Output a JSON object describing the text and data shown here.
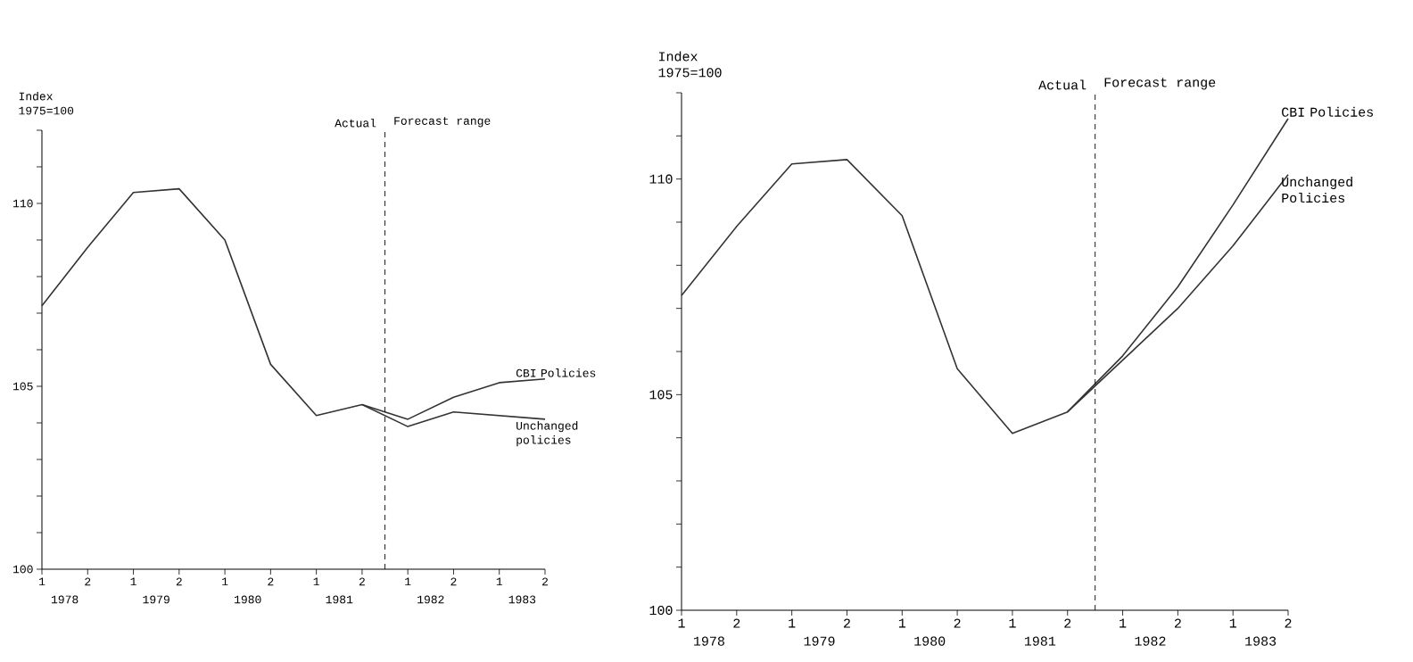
{
  "chart_data": [
    {
      "type": "line",
      "ylabel": "Index 1975=100",
      "ylim": [
        100,
        112
      ],
      "categories": [
        "1",
        "2",
        "1",
        "2",
        "1",
        "2",
        "1",
        "2",
        "1",
        "2",
        "1",
        "2"
      ],
      "yticks": [
        100,
        {
          "value": 101,
          "label": null
        },
        {
          "value": 102,
          "label": null
        },
        {
          "value": 103,
          "label": null
        },
        {
          "value": 104,
          "label": null
        },
        105,
        {
          "value": 106,
          "label": null
        },
        {
          "value": 107,
          "label": null
        },
        {
          "value": 108,
          "label": null
        },
        {
          "value": 109,
          "label": null
        },
        110,
        {
          "value": 111,
          "label": null
        },
        {
          "value": 112,
          "label": null
        }
      ],
      "series": [
        {
          "name": "CBI Policies",
          "color": "#333333",
          "values": [
            107.2,
            108.8,
            110.3,
            110.4,
            109.0,
            105.6,
            104.2,
            104.5,
            104.1,
            104.7,
            105.1,
            105.2
          ]
        },
        {
          "name": "Unchanged policies",
          "color": "#333333",
          "values": [
            null,
            null,
            null,
            null,
            null,
            null,
            null,
            104.5,
            103.9,
            104.3,
            104.2,
            104.1
          ]
        }
      ],
      "annotations": [
        "1978",
        "1979",
        "1980",
        "1981",
        "1982",
        "1983",
        "Actual",
        "Forecast range"
      ],
      "grid": false
    },
    {
      "type": "line",
      "ylabel": "Index 1975=100",
      "ylim": [
        100,
        112
      ],
      "categories": [
        "1",
        "2",
        "1",
        "2",
        "1",
        "2",
        "1",
        "2",
        "1",
        "2",
        "1",
        "2"
      ],
      "yticks": [
        100,
        {
          "value": 101,
          "label": null
        },
        {
          "value": 102,
          "label": null
        },
        {
          "value": 103,
          "label": null
        },
        {
          "value": 104,
          "label": null
        },
        105,
        {
          "value": 106,
          "label": null
        },
        {
          "value": 107,
          "label": null
        },
        {
          "value": 108,
          "label": null
        },
        {
          "value": 109,
          "label": null
        },
        110,
        {
          "value": 111,
          "label": null
        },
        {
          "value": 112,
          "label": null
        }
      ],
      "series": [
        {
          "name": "CBI Policies",
          "color": "#333333",
          "values": [
            107.3,
            108.9,
            110.35,
            110.45,
            109.15,
            105.6,
            104.1,
            104.6,
            105.9,
            107.5,
            109.4,
            111.4
          ]
        },
        {
          "name": "Unchanged Policies",
          "color": "#333333",
          "values": [
            null,
            null,
            null,
            null,
            null,
            null,
            null,
            104.6,
            105.8,
            107.0,
            108.45,
            110.1
          ]
        }
      ],
      "annotations": [
        "1978",
        "1979",
        "1980",
        "1981",
        "1982",
        "1983",
        "Actual",
        "Forecast range"
      ],
      "grid": false
    }
  ]
}
